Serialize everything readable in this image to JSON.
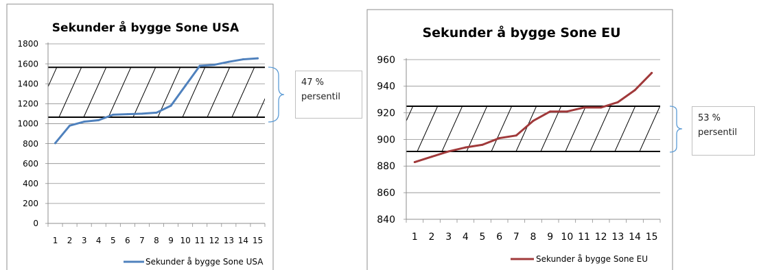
{
  "chart_data": [
    {
      "type": "line",
      "title": "Sekunder å bygge Sone USA",
      "categories": [
        "1",
        "2",
        "3",
        "4",
        "5",
        "6",
        "7",
        "8",
        "9",
        "10",
        "11",
        "12",
        "13",
        "14",
        "15"
      ],
      "series": [
        {
          "name": "Sekunder å bygge Sone USA",
          "values": [
            805,
            980,
            1020,
            1035,
            1090,
            1095,
            1100,
            1110,
            1180,
            1380,
            1580,
            1590,
            1620,
            1645,
            1655
          ]
        }
      ],
      "ylim": [
        0,
        1800
      ],
      "yticks": [
        0,
        200,
        400,
        600,
        800,
        1000,
        1200,
        1400,
        1600,
        1800
      ],
      "grid": true,
      "legend": "bottom",
      "line_color": "#4f81bd",
      "band": {
        "low": 1065,
        "high": 1565
      },
      "callout": {
        "value": "47 %",
        "label": "persentil"
      }
    },
    {
      "type": "line",
      "title": "Sekunder å bygge Sone EU",
      "categories": [
        "1",
        "2",
        "3",
        "4",
        "5",
        "6",
        "7",
        "8",
        "9",
        "10",
        "11",
        "12",
        "13",
        "14",
        "15"
      ],
      "series": [
        {
          "name": "Sekunder å bygge Sone EU",
          "values": [
            883,
            887,
            891,
            894,
            896,
            901,
            903,
            914,
            921,
            921,
            924,
            924,
            928,
            937,
            950
          ]
        }
      ],
      "ylim": [
        840,
        960
      ],
      "yticks": [
        840,
        860,
        880,
        900,
        920,
        940,
        960
      ],
      "grid": true,
      "legend": "bottom",
      "line_color": "#a0393a",
      "band": {
        "low": 891,
        "high": 925
      },
      "callout": {
        "value": "53 %",
        "label": "persentil"
      }
    }
  ]
}
